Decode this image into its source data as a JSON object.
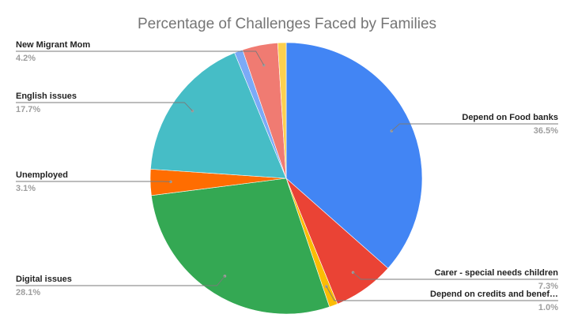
{
  "chart_data": {
    "type": "pie",
    "title": "Percentage of Challenges Faced by Families",
    "slices": [
      {
        "label": "Depend on Food banks",
        "pct_label": "36.5%",
        "value": 36.5,
        "color": "#4285f4"
      },
      {
        "label": "Carer - special needs children",
        "pct_label": "7.3%",
        "value": 7.3,
        "color": "#ea4335"
      },
      {
        "label": "Depend on credits and benef…",
        "pct_label": "1.0%",
        "value": 1.0,
        "color": "#fbbc04"
      },
      {
        "label": "Digital issues",
        "pct_label": "28.1%",
        "value": 28.1,
        "color": "#34a853"
      },
      {
        "label": "Unemployed",
        "pct_label": "3.1%",
        "value": 3.1,
        "color": "#ff6d01"
      },
      {
        "label": "English issues",
        "pct_label": "17.7%",
        "value": 17.7,
        "color": "#46bdc6"
      },
      {
        "label": "",
        "pct_label": "",
        "value": 1.0,
        "color": "#7baaf7"
      },
      {
        "label": "New Migrant Mom",
        "pct_label": "4.2%",
        "value": 4.2,
        "color": "#f07b72"
      },
      {
        "label": "",
        "pct_label": "",
        "value": 1.0,
        "color": "#fcd04f"
      }
    ]
  }
}
